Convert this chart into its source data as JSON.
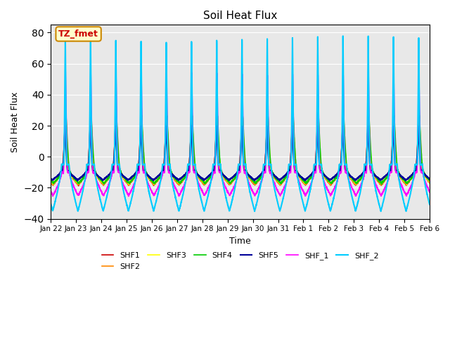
{
  "title": "Soil Heat Flux",
  "xlabel": "Time",
  "ylabel": "Soil Heat Flux",
  "ylim": [
    -40,
    85
  ],
  "yticks": [
    -40,
    -20,
    0,
    20,
    40,
    60,
    80
  ],
  "x_tick_labels": [
    "Jan 22",
    "Jan 23",
    "Jan 24",
    "Jan 25",
    "Jan 26",
    "Jan 27",
    "Jan 28",
    "Jan 29",
    "Jan 30",
    "Jan 31",
    "Feb 1",
    "Feb 2",
    "Feb 3",
    "Feb 4",
    "Feb 5",
    "Feb 6"
  ],
  "series_names": [
    "SHF1",
    "SHF2",
    "SHF3",
    "SHF4",
    "SHF5",
    "SHF_1",
    "SHF_2"
  ],
  "series_colors": [
    "#cc0000",
    "#ff8800",
    "#ffff00",
    "#00cc00",
    "#000099",
    "#ff00ff",
    "#00ccff"
  ],
  "series_linewidths": [
    1.2,
    1.2,
    1.2,
    1.2,
    1.5,
    1.2,
    1.5
  ],
  "annotation_text": "TZ_fmet",
  "annotation_fc": "#ffffcc",
  "annotation_ec": "#cc8800",
  "annotation_tc": "#cc0000",
  "background_color": "#e8e8e8",
  "n_points": 3600,
  "days": 16
}
